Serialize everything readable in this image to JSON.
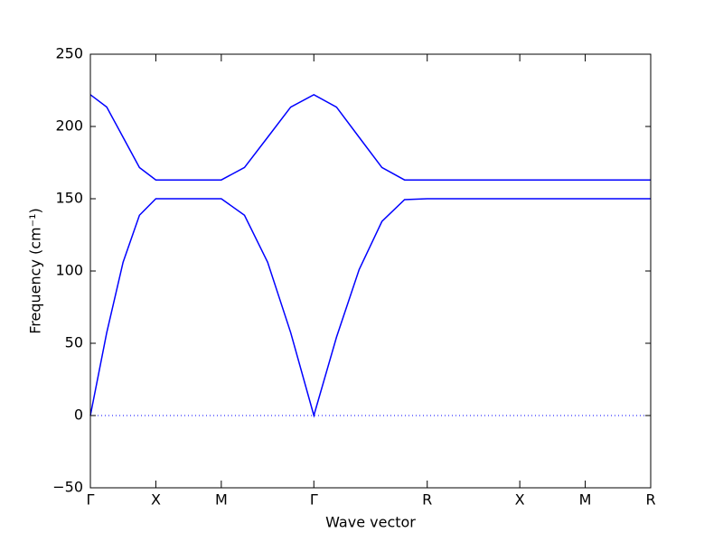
{
  "chart_data": {
    "type": "line",
    "xlabel": "Wave vector",
    "ylabel": "Frequency (cm⁻¹)",
    "x": [
      0,
      0.125,
      0.25,
      0.375,
      0.5,
      0.75,
      1.0,
      1.177,
      1.354,
      1.53,
      1.707,
      1.88,
      2.053,
      2.227,
      2.4,
      2.573,
      3.28,
      3.78,
      4.28
    ],
    "series": [
      {
        "color": "#0000ff",
        "values": [
          0,
          57.4,
          106.1,
          138.6,
          150,
          150,
          150,
          138.6,
          106.1,
          57.4,
          0,
          54.2,
          101.0,
          134.3,
          149.4,
          150,
          150,
          150,
          150
        ]
      },
      {
        "color": "#0000ff",
        "values": [
          222,
          213.4,
          192.5,
          171.6,
          163,
          163,
          163,
          171.6,
          192.5,
          213.4,
          222,
          213.4,
          192.5,
          171.6,
          163,
          163,
          163,
          163,
          163
        ]
      }
    ],
    "xlim": [
      0,
      4.28
    ],
    "xticks": [
      {
        "value": 0,
        "label": "Γ"
      },
      {
        "value": 0.5,
        "label": "X"
      },
      {
        "value": 1.0,
        "label": "M"
      },
      {
        "value": 1.707,
        "label": "Γ"
      },
      {
        "value": 2.573,
        "label": "R"
      },
      {
        "value": 3.28,
        "label": "X"
      },
      {
        "value": 3.78,
        "label": "M"
      },
      {
        "value": 4.28,
        "label": "R"
      }
    ],
    "ylim": [
      -50,
      250
    ],
    "yticks": [
      {
        "value": -50,
        "label": "−50"
      },
      0,
      50,
      100,
      150,
      200,
      250
    ]
  }
}
